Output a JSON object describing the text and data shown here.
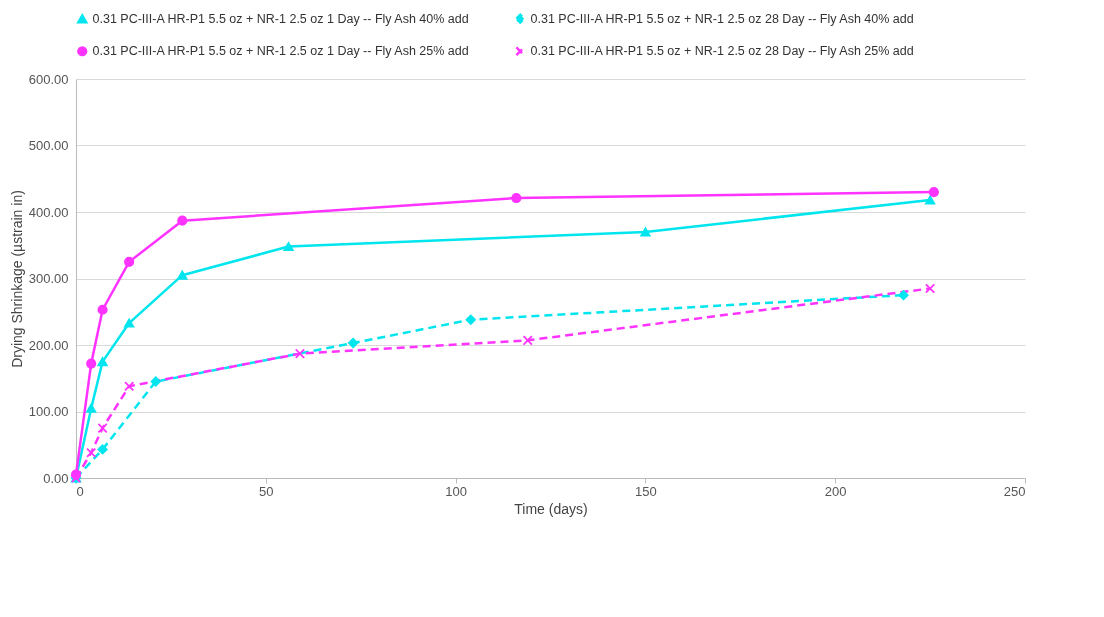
{
  "chart_data": {
    "type": "line",
    "xlabel": "Time (days)",
    "ylabel": "Drying Shrinkage (µstrain in)",
    "xlim": [
      0,
      250
    ],
    "xticks": [
      0,
      50,
      100,
      150,
      200,
      250
    ],
    "ylim": [
      0,
      600
    ],
    "yticks": [
      {
        "value": 0,
        "label": "0.00"
      },
      {
        "value": 100,
        "label": "100.00"
      },
      {
        "value": 200,
        "label": "200.00"
      },
      {
        "value": 300,
        "label": "300.00"
      },
      {
        "value": 400,
        "label": "400.00"
      },
      {
        "value": 500,
        "label": "500.00"
      },
      {
        "value": 600,
        "label": "600.00"
      }
    ],
    "grid": "y",
    "legend": "top",
    "series": [
      {
        "name": "0.31 PC-III-A HR-P1 5.5 oz + NR-1 2.5 oz 1 Day -- Fly Ash 40% add",
        "color": "#00e5ee",
        "marker": "triangle",
        "line_style": "solid",
        "x": [
          0,
          4,
          7,
          14,
          28,
          56,
          150,
          225
        ],
        "values": [
          0,
          105,
          175,
          233,
          305,
          348,
          370,
          418
        ]
      },
      {
        "name": "0.31 PC-III-A HR-P1 5.5 oz + NR-1 2.5 oz 28 Day -- Fly Ash 40% add",
        "color": "#00e5ee",
        "marker": "diamond",
        "line_style": "dashed",
        "x": [
          0,
          7,
          21,
          73,
          104,
          218
        ],
        "values": [
          0,
          43,
          145,
          203,
          238,
          275
        ]
      },
      {
        "name": "0.31 PC-III-A HR-P1 5.5 oz + NR-1 2.5 oz 1 Day -- Fly Ash 25% add",
        "color": "#ff33ff",
        "marker": "circle",
        "line_style": "solid",
        "x": [
          0,
          4,
          7,
          14,
          28,
          116,
          226
        ],
        "values": [
          5,
          172,
          253,
          325,
          387,
          421,
          430
        ]
      },
      {
        "name": "0.31 PC-III-A HR-P1 5.5 oz + NR-1 2.5 oz 28 Day -- Fly Ash 25% add",
        "color": "#ff33ff",
        "marker": "cross",
        "line_style": "dashed",
        "x": [
          0,
          4,
          7,
          14,
          59,
          119,
          225
        ],
        "values": [
          0,
          38,
          75,
          138,
          187,
          207,
          285
        ]
      }
    ]
  }
}
